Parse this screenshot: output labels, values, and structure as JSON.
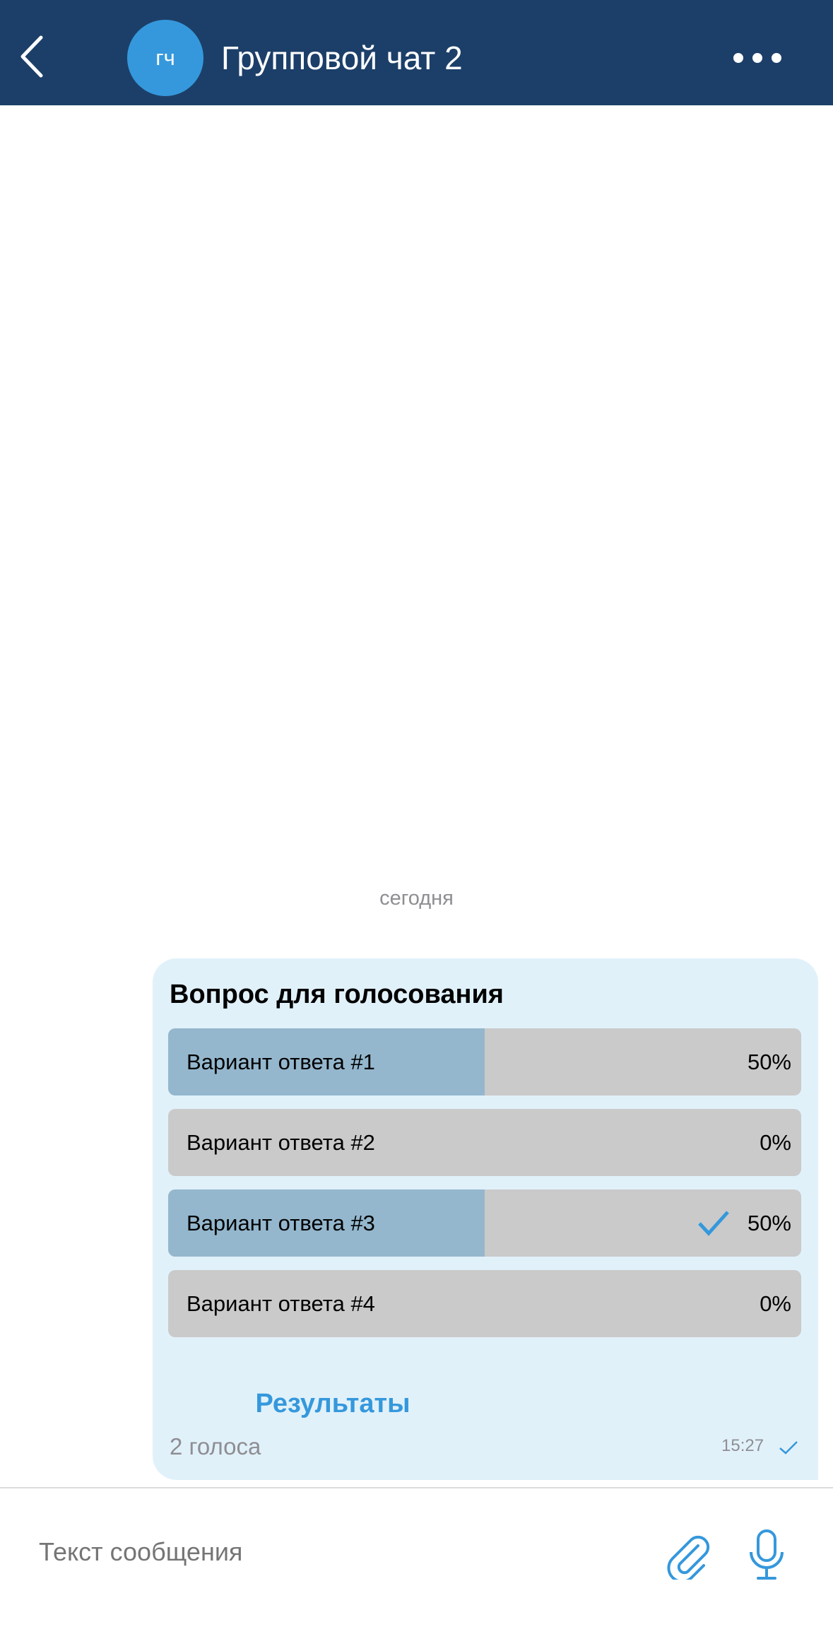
{
  "header": {
    "title": "Групповой чат 2",
    "avatar_initials": "ГЧ",
    "icons": [
      "back-chevron-icon",
      "more-dots-icon"
    ]
  },
  "chat": {
    "date_separator": "сегодня"
  },
  "poll": {
    "question": "Вопрос для голосования",
    "options": [
      {
        "label": "Вариант ответа #1",
        "percent_text": "50%",
        "percent": 50,
        "selected": false
      },
      {
        "label": "Вариант ответа #2",
        "percent_text": "0%",
        "percent": 0,
        "selected": false
      },
      {
        "label": "Вариант ответа #3",
        "percent_text": "50%",
        "percent": 50,
        "selected": true
      },
      {
        "label": "Вариант ответа #4",
        "percent_text": "0%",
        "percent": 0,
        "selected": false
      }
    ],
    "results_label": "Результаты",
    "votes": "2 голоса",
    "time": "15:27"
  },
  "composer": {
    "placeholder": "Текст сообщения",
    "icons": [
      "paperclip-icon",
      "microphone-icon"
    ]
  },
  "colors": {
    "header": "#1c3f69",
    "accent": "#3598dc",
    "bubble": "#e1f1fa",
    "bar_fill": "#94b7cd",
    "bar_bg": "#cacaca"
  }
}
